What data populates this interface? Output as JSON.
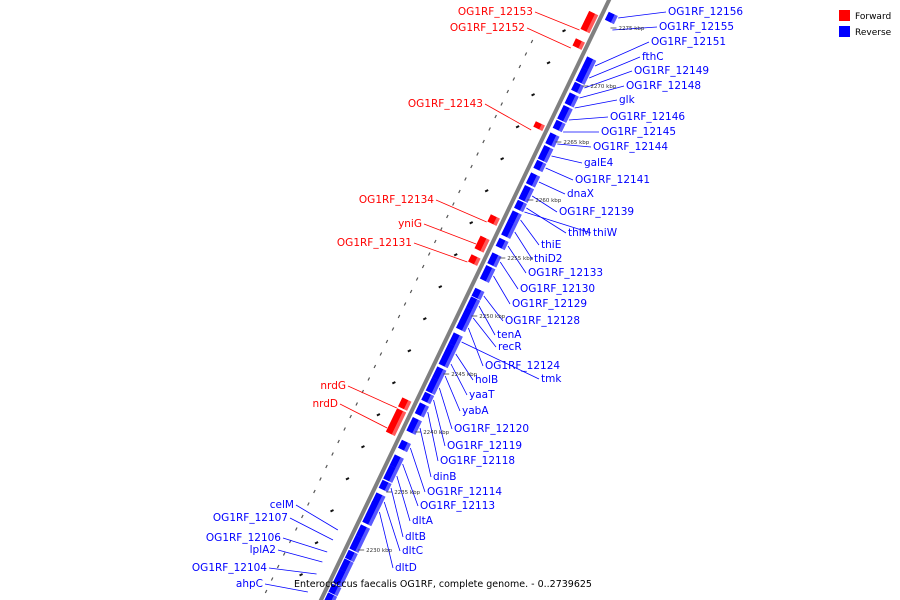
{
  "caption": "Enterococcus faecalis OG1RF, complete genome. - 0..2739625",
  "legend": [
    {
      "label": "Forward",
      "color": "#ff0000"
    },
    {
      "label": "Reverse",
      "color": "#0000ff"
    }
  ],
  "colors": {
    "forward": "#ff0000",
    "reverse": "#0000ff",
    "backbone": "#808080"
  },
  "tick_labels": [
    "2275 kbp",
    "2270 kbp",
    "2265 kbp",
    "2260 kbp",
    "2255 kbp",
    "2250 kbp",
    "2245 kbp",
    "2240 kbp",
    "2235 kbp",
    "2230 kbp"
  ],
  "forward_genes": [
    "OG1RF_12153",
    "OG1RF_12152",
    "OG1RF_12143",
    "OG1RF_12134",
    "yniG",
    "OG1RF_12131",
    "nrdG",
    "nrdD"
  ],
  "reverse_genes": [
    "OG1RF_12156",
    "OG1RF_12155",
    "OG1RF_12151",
    "fthC",
    "OG1RF_12149",
    "OG1RF_12148",
    "glk",
    "OG1RF_12146",
    "OG1RF_12145",
    "OG1RF_12144",
    "galE4",
    "OG1RF_12141",
    "dnaX",
    "OG1RF_12139",
    "thiM",
    "thiW",
    "thiE",
    "thiD2",
    "OG1RF_12133",
    "OG1RF_12130",
    "OG1RF_12129",
    "OG1RF_12128",
    "tenA",
    "recR",
    "OG1RF_12124",
    "tmk",
    "holB",
    "yaaT",
    "yabA",
    "OG1RF_12120",
    "OG1RF_12119",
    "OG1RF_12118",
    "dinB",
    "OG1RF_12114",
    "OG1RF_12113",
    "dltA",
    "dltB",
    "dltC",
    "dltD",
    "celM",
    "OG1RF_12107",
    "OG1RF_12106",
    "lplA2",
    "OG1RF_12104",
    "ahpC"
  ]
}
